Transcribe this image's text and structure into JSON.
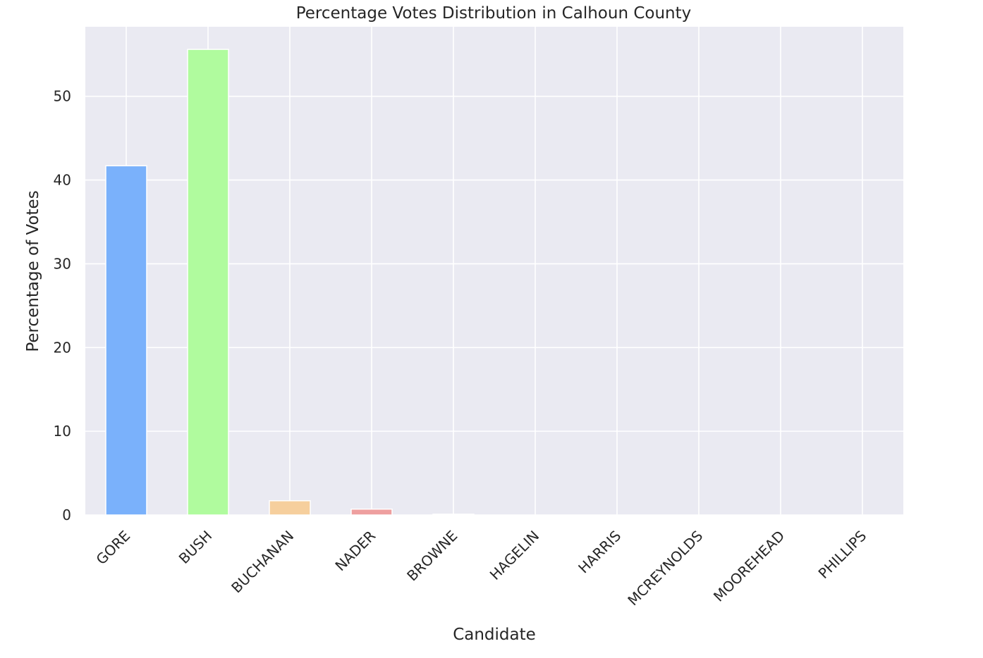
{
  "chart_data": {
    "type": "bar",
    "title": "Percentage Votes Distribution in Calhoun County",
    "xlabel": "Candidate",
    "ylabel": "Percentage of Votes",
    "categories": [
      "GORE",
      "BUSH",
      "BUCHANAN",
      "NADER",
      "BROWNE",
      "HAGELIN",
      "HARRIS",
      "MCREYNOLDS",
      "MOOREHEAD",
      "PHILLIPS"
    ],
    "values": [
      41.7,
      55.6,
      1.7,
      0.7,
      0.1,
      0.0,
      0.0,
      0.0,
      0.0,
      0.0
    ],
    "colors": [
      "#7ab1fb",
      "#b0fb9e",
      "#f6cf9d",
      "#ee9f9f",
      "#c9b7f0",
      "#c9b7f0",
      "#c9b7f0",
      "#c9b7f0",
      "#c9b7f0",
      "#c9b7f0"
    ],
    "ylim": [
      0,
      58.3
    ],
    "yticks": [
      0,
      10,
      20,
      30,
      40,
      50
    ],
    "grid": true,
    "background": "#eaeaf2",
    "grid_color": "#ffffff"
  }
}
